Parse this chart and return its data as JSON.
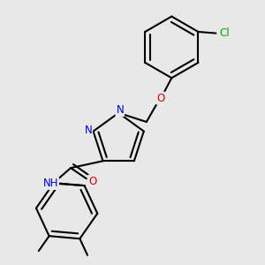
{
  "bg_color": "#e8e8e8",
  "bond_color": "#000000",
  "bond_width": 1.5,
  "atom_colors": {
    "N": "#0000cc",
    "O": "#cc0000",
    "Cl": "#00aa00",
    "H": "#808080",
    "C": "#000000"
  },
  "font_size_atom": 8.5
}
